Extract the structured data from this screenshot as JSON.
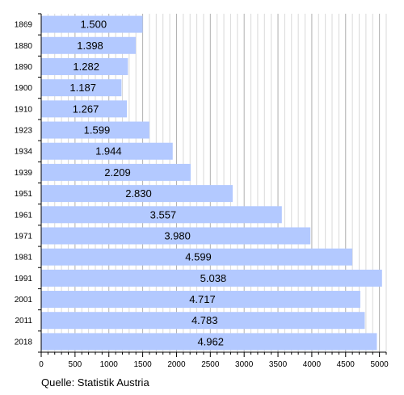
{
  "chart_data": {
    "type": "bar",
    "orientation": "horizontal",
    "categories": [
      "1869",
      "1880",
      "1890",
      "1900",
      "1910",
      "1923",
      "1934",
      "1939",
      "1951",
      "1961",
      "1971",
      "1981",
      "1991",
      "2001",
      "2011",
      "2018"
    ],
    "values": [
      1500,
      1398,
      1282,
      1187,
      1267,
      1599,
      1944,
      2209,
      2830,
      3557,
      3980,
      4599,
      5038,
      4717,
      4783,
      4962
    ],
    "value_labels": [
      "1.500",
      "1.398",
      "1.282",
      "1.187",
      "1.267",
      "1.599",
      "1.944",
      "2.209",
      "2.830",
      "3.557",
      "3.980",
      "4.599",
      "5.038",
      "4.717",
      "4.783",
      "4.962"
    ],
    "xlim": [
      0,
      5100
    ],
    "x_ticks": [
      0,
      500,
      1000,
      1500,
      2000,
      2500,
      3000,
      3500,
      4000,
      4500,
      5000
    ],
    "x_tick_labels": [
      "0",
      "500",
      "1000",
      "1500",
      "2000",
      "2500",
      "3000",
      "3500",
      "4000",
      "4500",
      "5000"
    ],
    "grid": true,
    "bar_color": "#b3c9ff",
    "title": "",
    "xlabel": "",
    "ylabel": ""
  },
  "source": "Quelle: Statistik Austria"
}
